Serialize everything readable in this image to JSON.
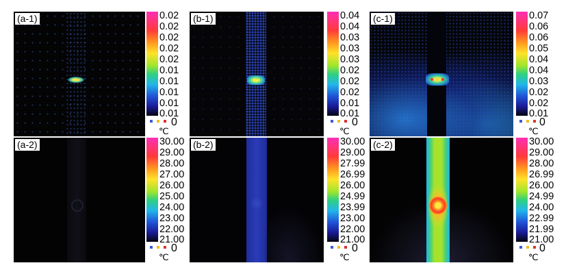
{
  "panels": [
    {
      "label": "(a-1)",
      "ticks": [
        "0.02",
        "0.02",
        "0.02",
        "0.02",
        "0.02",
        "0.01",
        "0.01",
        "0.01",
        "0.01",
        "0.01"
      ],
      "zero": "0",
      "unit": "℃"
    },
    {
      "label": "(b-1)",
      "ticks": [
        "0.04",
        "0.04",
        "0.03",
        "0.03",
        "0.03",
        "0.02",
        "0.02",
        "0.02",
        "0.01",
        "0.01"
      ],
      "zero": "0",
      "unit": "℃"
    },
    {
      "label": "(c-1)",
      "ticks": [
        "0.07",
        "0.06",
        "0.06",
        "0.05",
        "0.04",
        "0.04",
        "0.03",
        "0.02",
        "0.02",
        "0.01"
      ],
      "zero": "0",
      "unit": "℃"
    },
    {
      "label": "(a-2)",
      "ticks": [
        "30.00",
        "29.00",
        "28.00",
        "27.00",
        "26.00",
        "25.00",
        "24.00",
        "23.00",
        "22.00",
        "21.00"
      ],
      "zero": "0",
      "unit": "℃"
    },
    {
      "label": "(b-2)",
      "ticks": [
        "30.00",
        "29.00",
        "27.99",
        "26.99",
        "26.00",
        "24.99",
        "23.99",
        "23.00",
        "22.00",
        "21.00"
      ],
      "zero": "0",
      "unit": "℃"
    },
    {
      "label": "(c-2)",
      "ticks": [
        "30.00",
        "29.00",
        "28.00",
        "26.99",
        "26.00",
        "24.99",
        "24.00",
        "22.99",
        "21.99",
        "21.00"
      ],
      "zero": "0",
      "unit": "℃"
    }
  ],
  "legend_colors": [
    "#3a5ad8",
    "#f0c020",
    "#e03030"
  ]
}
